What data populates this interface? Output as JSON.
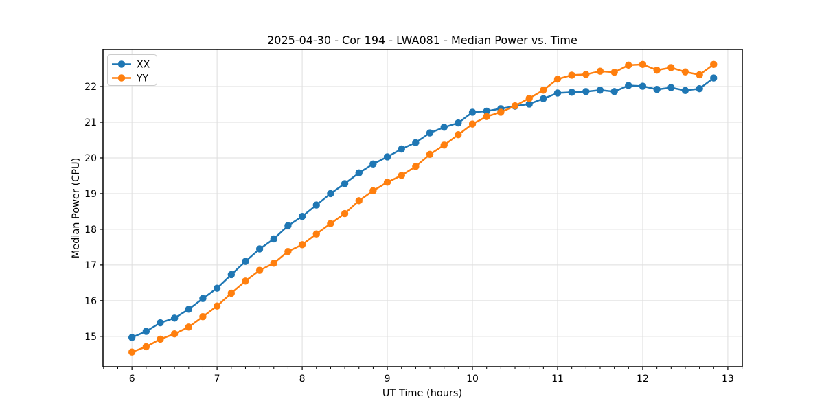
{
  "chart_data": {
    "type": "line",
    "title": "2025-04-30 - Cor 194 - LWA081 - Median Power vs. Time",
    "xlabel": "UT Time (hours)",
    "ylabel": "Median Power (CPU)",
    "x": [
      6,
      6.167,
      6.333,
      6.5,
      6.667,
      6.833,
      7,
      7.167,
      7.333,
      7.5,
      7.667,
      7.833,
      8,
      8.167,
      8.333,
      8.5,
      8.667,
      8.833,
      9,
      9.167,
      9.333,
      9.5,
      9.667,
      9.833,
      10,
      10.167,
      10.333,
      10.5,
      10.667,
      10.833,
      11,
      11.167,
      11.333,
      11.5,
      11.667,
      11.833,
      12,
      12.167,
      12.333,
      12.5,
      12.667,
      12.833
    ],
    "series": [
      {
        "name": "XX",
        "color": "#1f77b4",
        "values": [
          14.97,
          15.14,
          15.38,
          15.51,
          15.76,
          16.06,
          16.35,
          16.73,
          17.1,
          17.45,
          17.73,
          18.1,
          18.36,
          18.68,
          19.0,
          19.28,
          19.58,
          19.83,
          20.03,
          20.25,
          20.43,
          20.7,
          20.86,
          20.98,
          21.28,
          21.31,
          21.38,
          21.45,
          21.51,
          21.66,
          21.82,
          21.84,
          21.86,
          21.9,
          21.86,
          22.03,
          22.01,
          21.92,
          21.97,
          21.89,
          21.94,
          22.24
        ]
      },
      {
        "name": "YY",
        "color": "#ff7f0e",
        "values": [
          14.56,
          14.71,
          14.92,
          15.07,
          15.26,
          15.55,
          15.85,
          16.21,
          16.55,
          16.85,
          17.05,
          17.38,
          17.57,
          17.87,
          18.16,
          18.44,
          18.8,
          19.08,
          19.32,
          19.51,
          19.76,
          20.1,
          20.36,
          20.65,
          20.95,
          21.16,
          21.28,
          21.46,
          21.67,
          21.9,
          22.21,
          22.32,
          22.34,
          22.43,
          22.4,
          22.6,
          22.62,
          22.46,
          22.53,
          22.41,
          22.33,
          22.62
        ]
      }
    ],
    "xlim": [
      5.66,
      13.17
    ],
    "ylim": [
      14.15,
      23.04
    ],
    "xticks": [
      6,
      7,
      8,
      9,
      10,
      11,
      12,
      13
    ],
    "yticks": [
      15,
      16,
      17,
      18,
      19,
      20,
      21,
      22
    ],
    "x_minor_tick_step": 0.16667,
    "grid": true,
    "grid_color": "#dedede",
    "legend_position": "upper left",
    "marker": "o"
  }
}
